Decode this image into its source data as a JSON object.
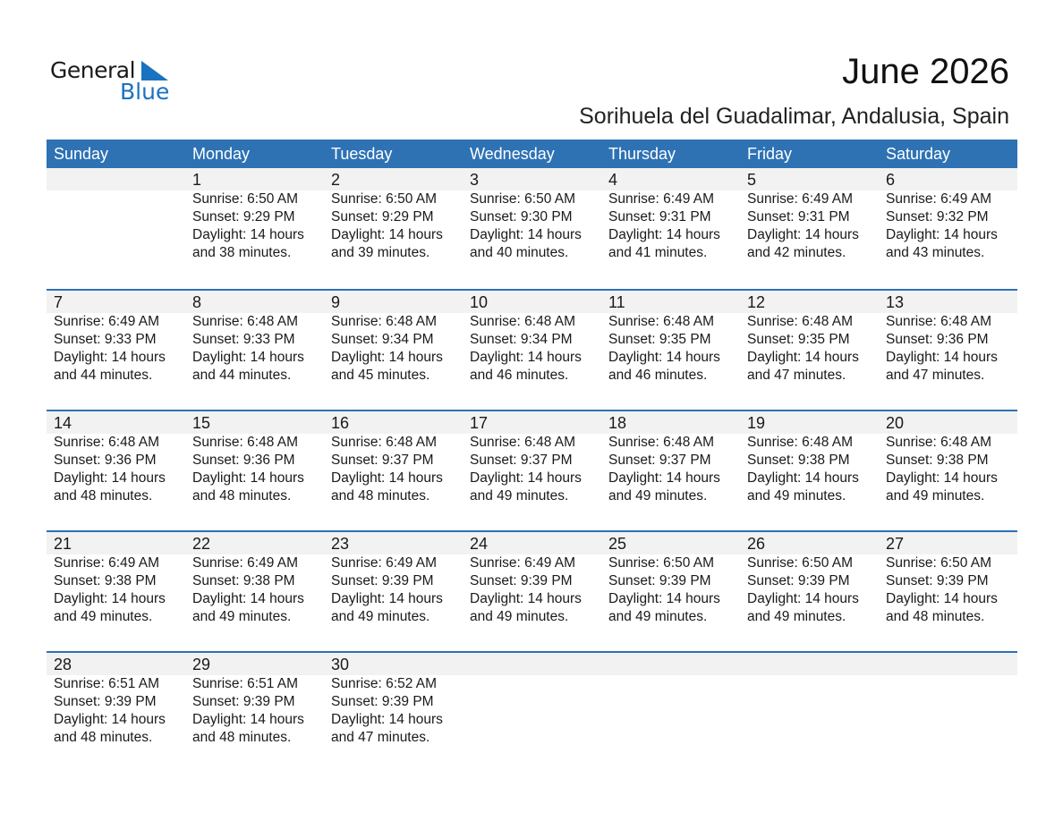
{
  "logo": {
    "word1": "General",
    "word2": "Blue",
    "accent": "#1a73c0"
  },
  "title": "June 2026",
  "subtitle": "Sorihuela del Guadalimar, Andalusia, Spain",
  "colors": {
    "header": "#2e72b4",
    "band": "#f2f2f2"
  },
  "weekdays": [
    "Sunday",
    "Monday",
    "Tuesday",
    "Wednesday",
    "Thursday",
    "Friday",
    "Saturday"
  ],
  "weeks": [
    [
      null,
      {
        "day": "1",
        "sunrise": "Sunrise: 6:50 AM",
        "sunset": "Sunset: 9:29 PM",
        "daylight": "Daylight: 14 hours",
        "minutes": "and 38 minutes."
      },
      {
        "day": "2",
        "sunrise": "Sunrise: 6:50 AM",
        "sunset": "Sunset: 9:29 PM",
        "daylight": "Daylight: 14 hours",
        "minutes": "and 39 minutes."
      },
      {
        "day": "3",
        "sunrise": "Sunrise: 6:50 AM",
        "sunset": "Sunset: 9:30 PM",
        "daylight": "Daylight: 14 hours",
        "minutes": "and 40 minutes."
      },
      {
        "day": "4",
        "sunrise": "Sunrise: 6:49 AM",
        "sunset": "Sunset: 9:31 PM",
        "daylight": "Daylight: 14 hours",
        "minutes": "and 41 minutes."
      },
      {
        "day": "5",
        "sunrise": "Sunrise: 6:49 AM",
        "sunset": "Sunset: 9:31 PM",
        "daylight": "Daylight: 14 hours",
        "minutes": "and 42 minutes."
      },
      {
        "day": "6",
        "sunrise": "Sunrise: 6:49 AM",
        "sunset": "Sunset: 9:32 PM",
        "daylight": "Daylight: 14 hours",
        "minutes": "and 43 minutes."
      }
    ],
    [
      {
        "day": "7",
        "sunrise": "Sunrise: 6:49 AM",
        "sunset": "Sunset: 9:33 PM",
        "daylight": "Daylight: 14 hours",
        "minutes": "and 44 minutes."
      },
      {
        "day": "8",
        "sunrise": "Sunrise: 6:48 AM",
        "sunset": "Sunset: 9:33 PM",
        "daylight": "Daylight: 14 hours",
        "minutes": "and 44 minutes."
      },
      {
        "day": "9",
        "sunrise": "Sunrise: 6:48 AM",
        "sunset": "Sunset: 9:34 PM",
        "daylight": "Daylight: 14 hours",
        "minutes": "and 45 minutes."
      },
      {
        "day": "10",
        "sunrise": "Sunrise: 6:48 AM",
        "sunset": "Sunset: 9:34 PM",
        "daylight": "Daylight: 14 hours",
        "minutes": "and 46 minutes."
      },
      {
        "day": "11",
        "sunrise": "Sunrise: 6:48 AM",
        "sunset": "Sunset: 9:35 PM",
        "daylight": "Daylight: 14 hours",
        "minutes": "and 46 minutes."
      },
      {
        "day": "12",
        "sunrise": "Sunrise: 6:48 AM",
        "sunset": "Sunset: 9:35 PM",
        "daylight": "Daylight: 14 hours",
        "minutes": "and 47 minutes."
      },
      {
        "day": "13",
        "sunrise": "Sunrise: 6:48 AM",
        "sunset": "Sunset: 9:36 PM",
        "daylight": "Daylight: 14 hours",
        "minutes": "and 47 minutes."
      }
    ],
    [
      {
        "day": "14",
        "sunrise": "Sunrise: 6:48 AM",
        "sunset": "Sunset: 9:36 PM",
        "daylight": "Daylight: 14 hours",
        "minutes": "and 48 minutes."
      },
      {
        "day": "15",
        "sunrise": "Sunrise: 6:48 AM",
        "sunset": "Sunset: 9:36 PM",
        "daylight": "Daylight: 14 hours",
        "minutes": "and 48 minutes."
      },
      {
        "day": "16",
        "sunrise": "Sunrise: 6:48 AM",
        "sunset": "Sunset: 9:37 PM",
        "daylight": "Daylight: 14 hours",
        "minutes": "and 48 minutes."
      },
      {
        "day": "17",
        "sunrise": "Sunrise: 6:48 AM",
        "sunset": "Sunset: 9:37 PM",
        "daylight": "Daylight: 14 hours",
        "minutes": "and 49 minutes."
      },
      {
        "day": "18",
        "sunrise": "Sunrise: 6:48 AM",
        "sunset": "Sunset: 9:37 PM",
        "daylight": "Daylight: 14 hours",
        "minutes": "and 49 minutes."
      },
      {
        "day": "19",
        "sunrise": "Sunrise: 6:48 AM",
        "sunset": "Sunset: 9:38 PM",
        "daylight": "Daylight: 14 hours",
        "minutes": "and 49 minutes."
      },
      {
        "day": "20",
        "sunrise": "Sunrise: 6:48 AM",
        "sunset": "Sunset: 9:38 PM",
        "daylight": "Daylight: 14 hours",
        "minutes": "and 49 minutes."
      }
    ],
    [
      {
        "day": "21",
        "sunrise": "Sunrise: 6:49 AM",
        "sunset": "Sunset: 9:38 PM",
        "daylight": "Daylight: 14 hours",
        "minutes": "and 49 minutes."
      },
      {
        "day": "22",
        "sunrise": "Sunrise: 6:49 AM",
        "sunset": "Sunset: 9:38 PM",
        "daylight": "Daylight: 14 hours",
        "minutes": "and 49 minutes."
      },
      {
        "day": "23",
        "sunrise": "Sunrise: 6:49 AM",
        "sunset": "Sunset: 9:39 PM",
        "daylight": "Daylight: 14 hours",
        "minutes": "and 49 minutes."
      },
      {
        "day": "24",
        "sunrise": "Sunrise: 6:49 AM",
        "sunset": "Sunset: 9:39 PM",
        "daylight": "Daylight: 14 hours",
        "minutes": "and 49 minutes."
      },
      {
        "day": "25",
        "sunrise": "Sunrise: 6:50 AM",
        "sunset": "Sunset: 9:39 PM",
        "daylight": "Daylight: 14 hours",
        "minutes": "and 49 minutes."
      },
      {
        "day": "26",
        "sunrise": "Sunrise: 6:50 AM",
        "sunset": "Sunset: 9:39 PM",
        "daylight": "Daylight: 14 hours",
        "minutes": "and 49 minutes."
      },
      {
        "day": "27",
        "sunrise": "Sunrise: 6:50 AM",
        "sunset": "Sunset: 9:39 PM",
        "daylight": "Daylight: 14 hours",
        "minutes": "and 48 minutes."
      }
    ],
    [
      {
        "day": "28",
        "sunrise": "Sunrise: 6:51 AM",
        "sunset": "Sunset: 9:39 PM",
        "daylight": "Daylight: 14 hours",
        "minutes": "and 48 minutes."
      },
      {
        "day": "29",
        "sunrise": "Sunrise: 6:51 AM",
        "sunset": "Sunset: 9:39 PM",
        "daylight": "Daylight: 14 hours",
        "minutes": "and 48 minutes."
      },
      {
        "day": "30",
        "sunrise": "Sunrise: 6:52 AM",
        "sunset": "Sunset: 9:39 PM",
        "daylight": "Daylight: 14 hours",
        "minutes": "and 47 minutes."
      },
      null,
      null,
      null,
      null
    ]
  ]
}
